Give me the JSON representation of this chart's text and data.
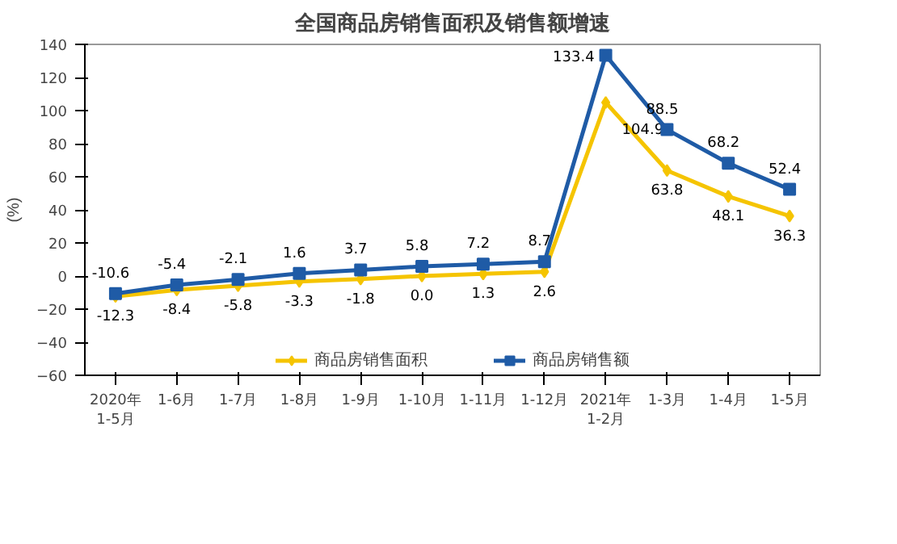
{
  "chart_data": {
    "type": "line",
    "title": "全国商品房销售面积及销售额增速",
    "ylabel": "(%)",
    "categories": [
      "2020年\n1-5月",
      "1-6月",
      "1-7月",
      "1-8月",
      "1-9月",
      "1-10月",
      "1-11月",
      "1-12月",
      "2021年\n1-2月",
      "1-3月",
      "1-4月",
      "1-5月"
    ],
    "series": [
      {
        "name": "商品房销售面积",
        "color": "#f5c400",
        "marker": "diamond",
        "values": [
          -12.3,
          -8.4,
          -5.8,
          -3.3,
          -1.8,
          0.0,
          1.3,
          2.6,
          104.9,
          63.8,
          48.1,
          36.3
        ],
        "value_labels": [
          "-12.3",
          "-8.4",
          "-5.8",
          "-3.3",
          "-1.8",
          "0.0",
          "1.3",
          "2.6",
          "104.9",
          "63.8",
          "48.1",
          "36.3"
        ]
      },
      {
        "name": "商品房销售额",
        "color": "#1f5ba6",
        "marker": "square",
        "values": [
          -10.6,
          -5.4,
          -2.1,
          1.6,
          3.7,
          5.8,
          7.2,
          8.7,
          133.4,
          88.5,
          68.2,
          52.4
        ],
        "value_labels": [
          "-10.6",
          "-5.4",
          "-2.1",
          "1.6",
          "3.7",
          "5.8",
          "7.2",
          "8.7",
          "133.4",
          "88.5",
          "68.2",
          "52.4"
        ]
      }
    ],
    "ylim": [
      -60,
      140
    ],
    "yticks": [
      -60,
      -40,
      -20,
      0,
      20,
      40,
      60,
      80,
      100,
      120,
      140
    ],
    "grid": false,
    "legend": "bottom",
    "data_labels": true,
    "line_style": "solid"
  }
}
